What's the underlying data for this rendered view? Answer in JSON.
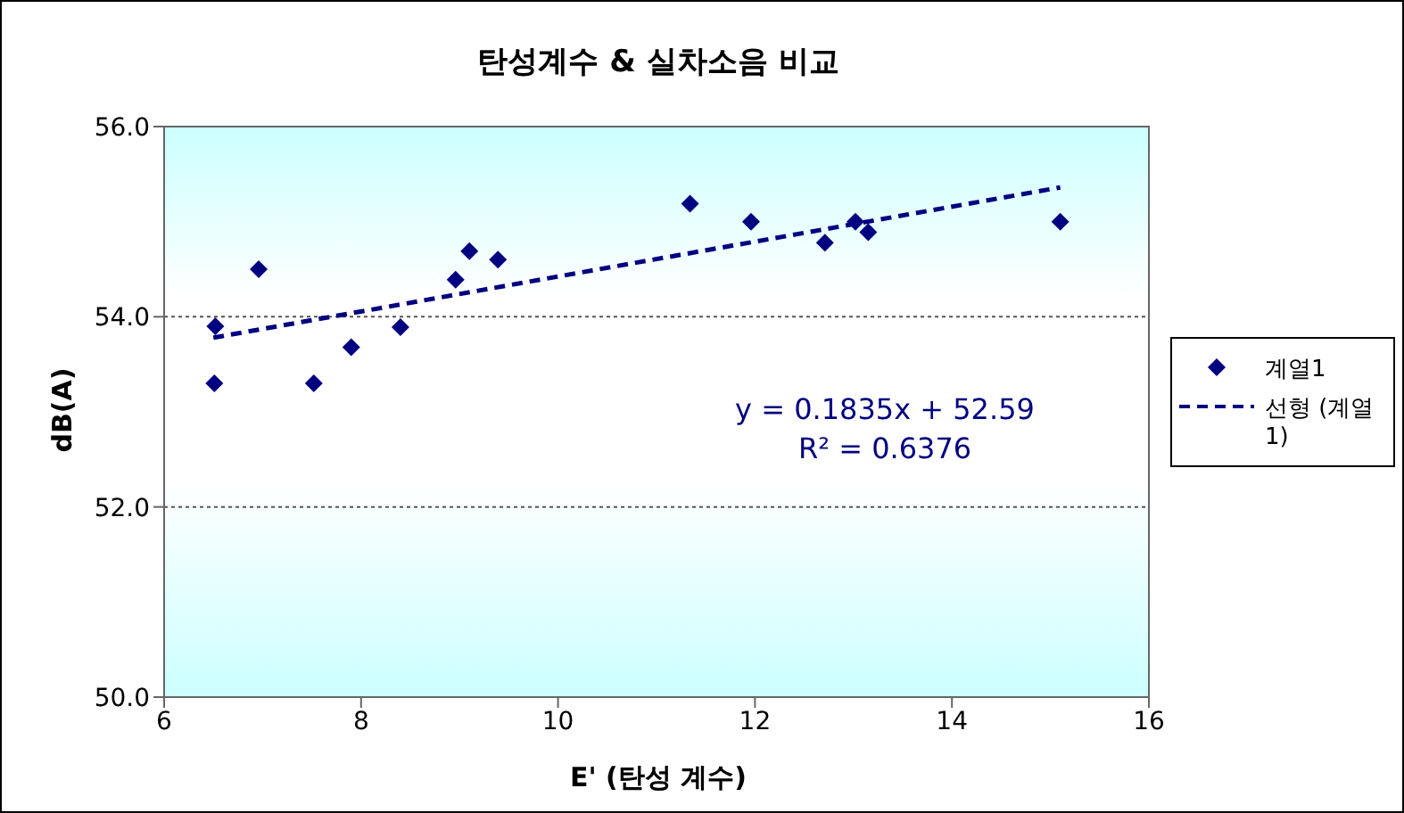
{
  "chart_data": {
    "type": "scatter",
    "title": "탄성계수 & 실차소음 비교",
    "xlabel": "E' (탄성 계수)",
    "ylabel": "dB(A)",
    "annotations": [
      "y = 0.1835x + 52.59",
      "R² = 0.6376"
    ],
    "series": [
      {
        "name": "계열1",
        "type": "scatter",
        "color": "#000080",
        "marker": "diamond",
        "x": [
          6.51,
          6.52,
          6.96,
          7.52,
          7.9,
          8.4,
          8.96,
          9.1,
          9.39,
          11.34,
          11.96,
          12.71,
          13.02,
          13.15,
          15.1
        ],
        "values": [
          53.3,
          53.9,
          54.5,
          53.3,
          53.68,
          53.89,
          54.39,
          54.69,
          54.6,
          55.19,
          55.0,
          54.78,
          55.0,
          54.89,
          55.0
        ]
      },
      {
        "name": "선형 (계열1)",
        "type": "line",
        "color": "#000080",
        "marker": "none",
        "line_style": "dashed",
        "x": [
          6.5,
          15.1
        ],
        "values": [
          53.78,
          55.36
        ]
      }
    ],
    "xlim": [
      6,
      16
    ],
    "xticks": [
      6,
      8,
      10,
      12,
      14,
      16
    ],
    "ylim": [
      50,
      56
    ],
    "yticks": [
      {
        "value": 50,
        "label": "50.0"
      },
      {
        "value": 52,
        "label": "52.0"
      },
      {
        "value": 54,
        "label": "54.0"
      },
      {
        "value": 56,
        "label": "56.0"
      }
    ],
    "grid": "y",
    "legend": "right"
  }
}
